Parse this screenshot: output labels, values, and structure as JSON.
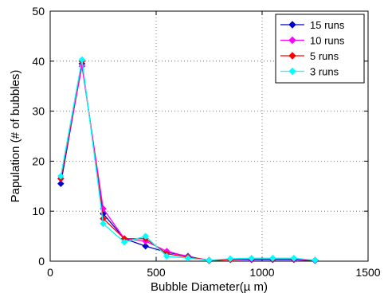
{
  "chart_data": {
    "type": "line",
    "title": "",
    "xlabel": "Bubble Diameter(µ m)",
    "ylabel": "Papulation (# of bubbles)",
    "xlim": [
      0,
      1500
    ],
    "ylim": [
      0,
      50
    ],
    "xticks": [
      0,
      500,
      1000,
      1500
    ],
    "yticks": [
      0,
      10,
      20,
      30,
      40,
      50
    ],
    "grid": true,
    "grid_style": "dotted",
    "legend_position": "top-right",
    "x": [
      50,
      150,
      250,
      350,
      450,
      550,
      650,
      750,
      850,
      950,
      1050,
      1150,
      1250
    ],
    "series": [
      {
        "name": "15 runs",
        "color": "#0000cc",
        "marker": "diamond",
        "values": [
          15.5,
          39.5,
          9.5,
          4.5,
          3.0,
          1.8,
          1.0,
          0.1,
          0.3,
          0.3,
          0.3,
          0.3,
          0.1
        ]
      },
      {
        "name": "10 runs",
        "color": "#ff00ff",
        "marker": "diamond",
        "values": [
          16.5,
          39.0,
          10.5,
          4.5,
          4.0,
          2.0,
          0.9,
          0.2,
          0.3,
          0.4,
          0.4,
          0.4,
          0.2
        ]
      },
      {
        "name": "5 runs",
        "color": "#ff0000",
        "marker": "diamond",
        "values": [
          16.5,
          40.0,
          8.5,
          4.5,
          4.5,
          1.5,
          0.8,
          0.2,
          0.3,
          0.5,
          0.5,
          0.5,
          0.2
        ]
      },
      {
        "name": "3 runs",
        "color": "#00ffff",
        "marker": "diamond",
        "values": [
          17.0,
          40.3,
          7.5,
          3.8,
          5.0,
          1.0,
          0.6,
          0.2,
          0.5,
          0.6,
          0.6,
          0.6,
          0.2
        ]
      }
    ]
  }
}
